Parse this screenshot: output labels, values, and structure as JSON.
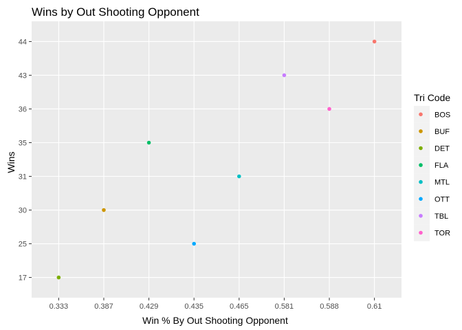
{
  "chart_data": {
    "type": "scatter",
    "title": "Wins by Out Shooting Opponent",
    "xlabel": "Win % By Out Shooting Opponent",
    "ylabel": "Wins",
    "x_scale": "discrete",
    "y_scale": "discrete",
    "x_categories": [
      "0.333",
      "0.387",
      "0.429",
      "0.435",
      "0.465",
      "0.581",
      "0.588",
      "0.61"
    ],
    "y_categories": [
      "17",
      "25",
      "30",
      "31",
      "35",
      "36",
      "43",
      "44"
    ],
    "grid": true,
    "legend": {
      "title": "Tri Code",
      "placement": "right",
      "entries": [
        {
          "label": "BOS",
          "color": "#F8766D"
        },
        {
          "label": "BUF",
          "color": "#CD9600"
        },
        {
          "label": "DET",
          "color": "#7CAE00"
        },
        {
          "label": "FLA",
          "color": "#00BE67"
        },
        {
          "label": "MTL",
          "color": "#00BFC4"
        },
        {
          "label": "OTT",
          "color": "#00A9FF"
        },
        {
          "label": "TBL",
          "color": "#C77CFF"
        },
        {
          "label": "TOR",
          "color": "#FF61CC"
        }
      ]
    },
    "points": [
      {
        "team": "BOS",
        "x": "0.61",
        "y": "44"
      },
      {
        "team": "BUF",
        "x": "0.387",
        "y": "30"
      },
      {
        "team": "DET",
        "x": "0.333",
        "y": "17"
      },
      {
        "team": "FLA",
        "x": "0.429",
        "y": "35"
      },
      {
        "team": "MTL",
        "x": "0.465",
        "y": "31"
      },
      {
        "team": "OTT",
        "x": "0.435",
        "y": "25"
      },
      {
        "team": "TBL",
        "x": "0.581",
        "y": "43"
      },
      {
        "team": "TOR",
        "x": "0.588",
        "y": "36"
      }
    ],
    "colors": {
      "panel_background": "#EBEBEB",
      "grid_major": "#FFFFFF",
      "legend_key_background": "#F2F2F2",
      "tick_text": "#4D4D4D"
    }
  }
}
